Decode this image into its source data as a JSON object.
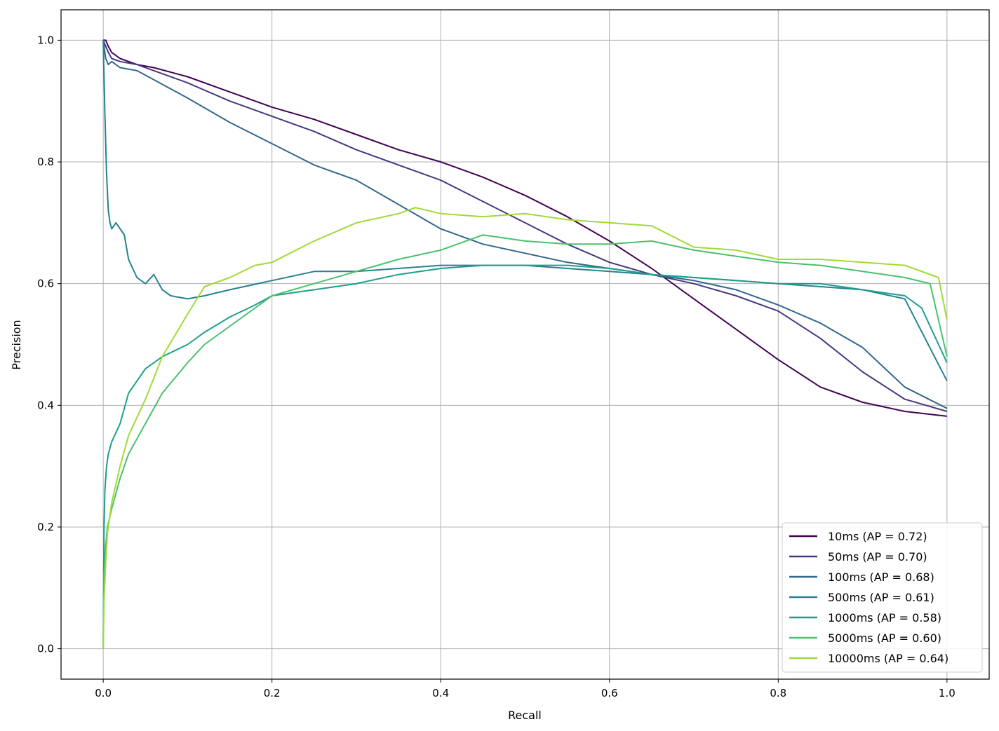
{
  "chart_data": {
    "type": "line",
    "xlabel": "Recall",
    "ylabel": "Precision",
    "xlim": [
      -0.05,
      1.05
    ],
    "ylim": [
      -0.05,
      1.05
    ],
    "xticks": [
      0.0,
      0.2,
      0.4,
      0.6,
      0.8,
      1.0
    ],
    "yticks": [
      0.0,
      0.2,
      0.4,
      0.6,
      0.8,
      1.0
    ],
    "xtick_labels": [
      "0.0",
      "0.2",
      "0.4",
      "0.6",
      "0.8",
      "1.0"
    ],
    "ytick_labels": [
      "0.0",
      "0.2",
      "0.4",
      "0.6",
      "0.8",
      "1.0"
    ],
    "grid": true,
    "legend_position": "lower-right",
    "series": [
      {
        "name": "10ms (AP = 0.72)",
        "color": "#440154",
        "x": [
          0.0,
          0.003,
          0.006,
          0.01,
          0.02,
          0.04,
          0.06,
          0.1,
          0.15,
          0.2,
          0.25,
          0.3,
          0.35,
          0.4,
          0.45,
          0.5,
          0.55,
          0.6,
          0.65,
          0.7,
          0.75,
          0.8,
          0.85,
          0.9,
          0.95,
          1.0
        ],
        "y": [
          1.0,
          1.0,
          0.99,
          0.98,
          0.97,
          0.96,
          0.955,
          0.94,
          0.915,
          0.89,
          0.87,
          0.845,
          0.82,
          0.8,
          0.775,
          0.745,
          0.71,
          0.67,
          0.625,
          0.575,
          0.525,
          0.475,
          0.43,
          0.405,
          0.39,
          0.382
        ]
      },
      {
        "name": "50ms (AP = 0.70)",
        "color": "#443983",
        "x": [
          0.0,
          0.003,
          0.006,
          0.01,
          0.02,
          0.04,
          0.06,
          0.1,
          0.15,
          0.2,
          0.25,
          0.3,
          0.35,
          0.4,
          0.45,
          0.5,
          0.55,
          0.6,
          0.65,
          0.7,
          0.75,
          0.8,
          0.85,
          0.9,
          0.95,
          1.0
        ],
        "y": [
          1.0,
          0.99,
          0.98,
          0.97,
          0.965,
          0.96,
          0.95,
          0.93,
          0.9,
          0.875,
          0.85,
          0.82,
          0.795,
          0.77,
          0.735,
          0.7,
          0.665,
          0.635,
          0.615,
          0.6,
          0.58,
          0.555,
          0.51,
          0.455,
          0.41,
          0.39
        ]
      },
      {
        "name": "100ms (AP = 0.68)",
        "color": "#31688e",
        "x": [
          0.0,
          0.003,
          0.006,
          0.01,
          0.02,
          0.04,
          0.06,
          0.1,
          0.15,
          0.2,
          0.25,
          0.3,
          0.35,
          0.4,
          0.45,
          0.5,
          0.55,
          0.6,
          0.65,
          0.7,
          0.75,
          0.8,
          0.85,
          0.9,
          0.95,
          1.0
        ],
        "y": [
          1.0,
          0.97,
          0.96,
          0.965,
          0.955,
          0.95,
          0.935,
          0.905,
          0.865,
          0.83,
          0.795,
          0.77,
          0.73,
          0.69,
          0.665,
          0.65,
          0.635,
          0.625,
          0.615,
          0.605,
          0.59,
          0.565,
          0.535,
          0.495,
          0.43,
          0.395
        ]
      },
      {
        "name": "500ms (AP = 0.61)",
        "color": "#26828e",
        "x": [
          0.0,
          0.002,
          0.004,
          0.006,
          0.008,
          0.01,
          0.015,
          0.02,
          0.025,
          0.03,
          0.04,
          0.05,
          0.06,
          0.07,
          0.08,
          0.1,
          0.12,
          0.15,
          0.2,
          0.25,
          0.3,
          0.35,
          0.4,
          0.45,
          0.5,
          0.55,
          0.6,
          0.65,
          0.7,
          0.75,
          0.8,
          0.85,
          0.9,
          0.95,
          1.0
        ],
        "y": [
          1.0,
          0.88,
          0.78,
          0.72,
          0.7,
          0.69,
          0.7,
          0.69,
          0.68,
          0.64,
          0.61,
          0.6,
          0.615,
          0.59,
          0.58,
          0.575,
          0.58,
          0.59,
          0.605,
          0.62,
          0.62,
          0.625,
          0.63,
          0.63,
          0.63,
          0.625,
          0.62,
          0.615,
          0.61,
          0.605,
          0.6,
          0.595,
          0.59,
          0.575,
          0.44
        ]
      },
      {
        "name": "1000ms (AP = 0.58)",
        "color": "#1f9e89",
        "x": [
          0.0,
          0.001,
          0.002,
          0.004,
          0.006,
          0.01,
          0.02,
          0.03,
          0.05,
          0.07,
          0.1,
          0.12,
          0.15,
          0.18,
          0.2,
          0.25,
          0.3,
          0.35,
          0.4,
          0.45,
          0.5,
          0.55,
          0.6,
          0.65,
          0.7,
          0.75,
          0.8,
          0.85,
          0.9,
          0.95,
          0.97,
          0.99,
          1.0
        ],
        "y": [
          0.0,
          0.2,
          0.26,
          0.3,
          0.32,
          0.34,
          0.37,
          0.42,
          0.46,
          0.48,
          0.5,
          0.52,
          0.545,
          0.565,
          0.58,
          0.59,
          0.6,
          0.615,
          0.625,
          0.63,
          0.63,
          0.63,
          0.625,
          0.615,
          0.61,
          0.605,
          0.6,
          0.6,
          0.59,
          0.58,
          0.56,
          0.5,
          0.47
        ]
      },
      {
        "name": "5000ms (AP = 0.60)",
        "color": "#4ac16d",
        "x": [
          0.0,
          0.001,
          0.003,
          0.005,
          0.01,
          0.02,
          0.03,
          0.05,
          0.07,
          0.1,
          0.12,
          0.15,
          0.2,
          0.25,
          0.3,
          0.35,
          0.4,
          0.45,
          0.5,
          0.55,
          0.6,
          0.65,
          0.7,
          0.75,
          0.8,
          0.85,
          0.9,
          0.95,
          0.98,
          1.0
        ],
        "y": [
          0.0,
          0.12,
          0.17,
          0.2,
          0.23,
          0.28,
          0.32,
          0.37,
          0.42,
          0.47,
          0.5,
          0.53,
          0.58,
          0.6,
          0.62,
          0.64,
          0.655,
          0.68,
          0.67,
          0.665,
          0.665,
          0.67,
          0.655,
          0.645,
          0.635,
          0.63,
          0.62,
          0.61,
          0.6,
          0.48
        ]
      },
      {
        "name": "10000ms (AP = 0.64)",
        "color": "#a0da39",
        "x": [
          0.0,
          0.001,
          0.003,
          0.005,
          0.01,
          0.02,
          0.03,
          0.05,
          0.07,
          0.1,
          0.12,
          0.15,
          0.18,
          0.2,
          0.25,
          0.3,
          0.35,
          0.37,
          0.4,
          0.45,
          0.5,
          0.55,
          0.6,
          0.65,
          0.7,
          0.75,
          0.8,
          0.85,
          0.9,
          0.95,
          0.99,
          1.0
        ],
        "y": [
          0.0,
          0.08,
          0.14,
          0.19,
          0.24,
          0.3,
          0.35,
          0.41,
          0.48,
          0.55,
          0.595,
          0.61,
          0.63,
          0.635,
          0.67,
          0.7,
          0.715,
          0.725,
          0.715,
          0.71,
          0.715,
          0.705,
          0.7,
          0.695,
          0.66,
          0.655,
          0.64,
          0.64,
          0.635,
          0.63,
          0.61,
          0.54
        ]
      }
    ]
  }
}
